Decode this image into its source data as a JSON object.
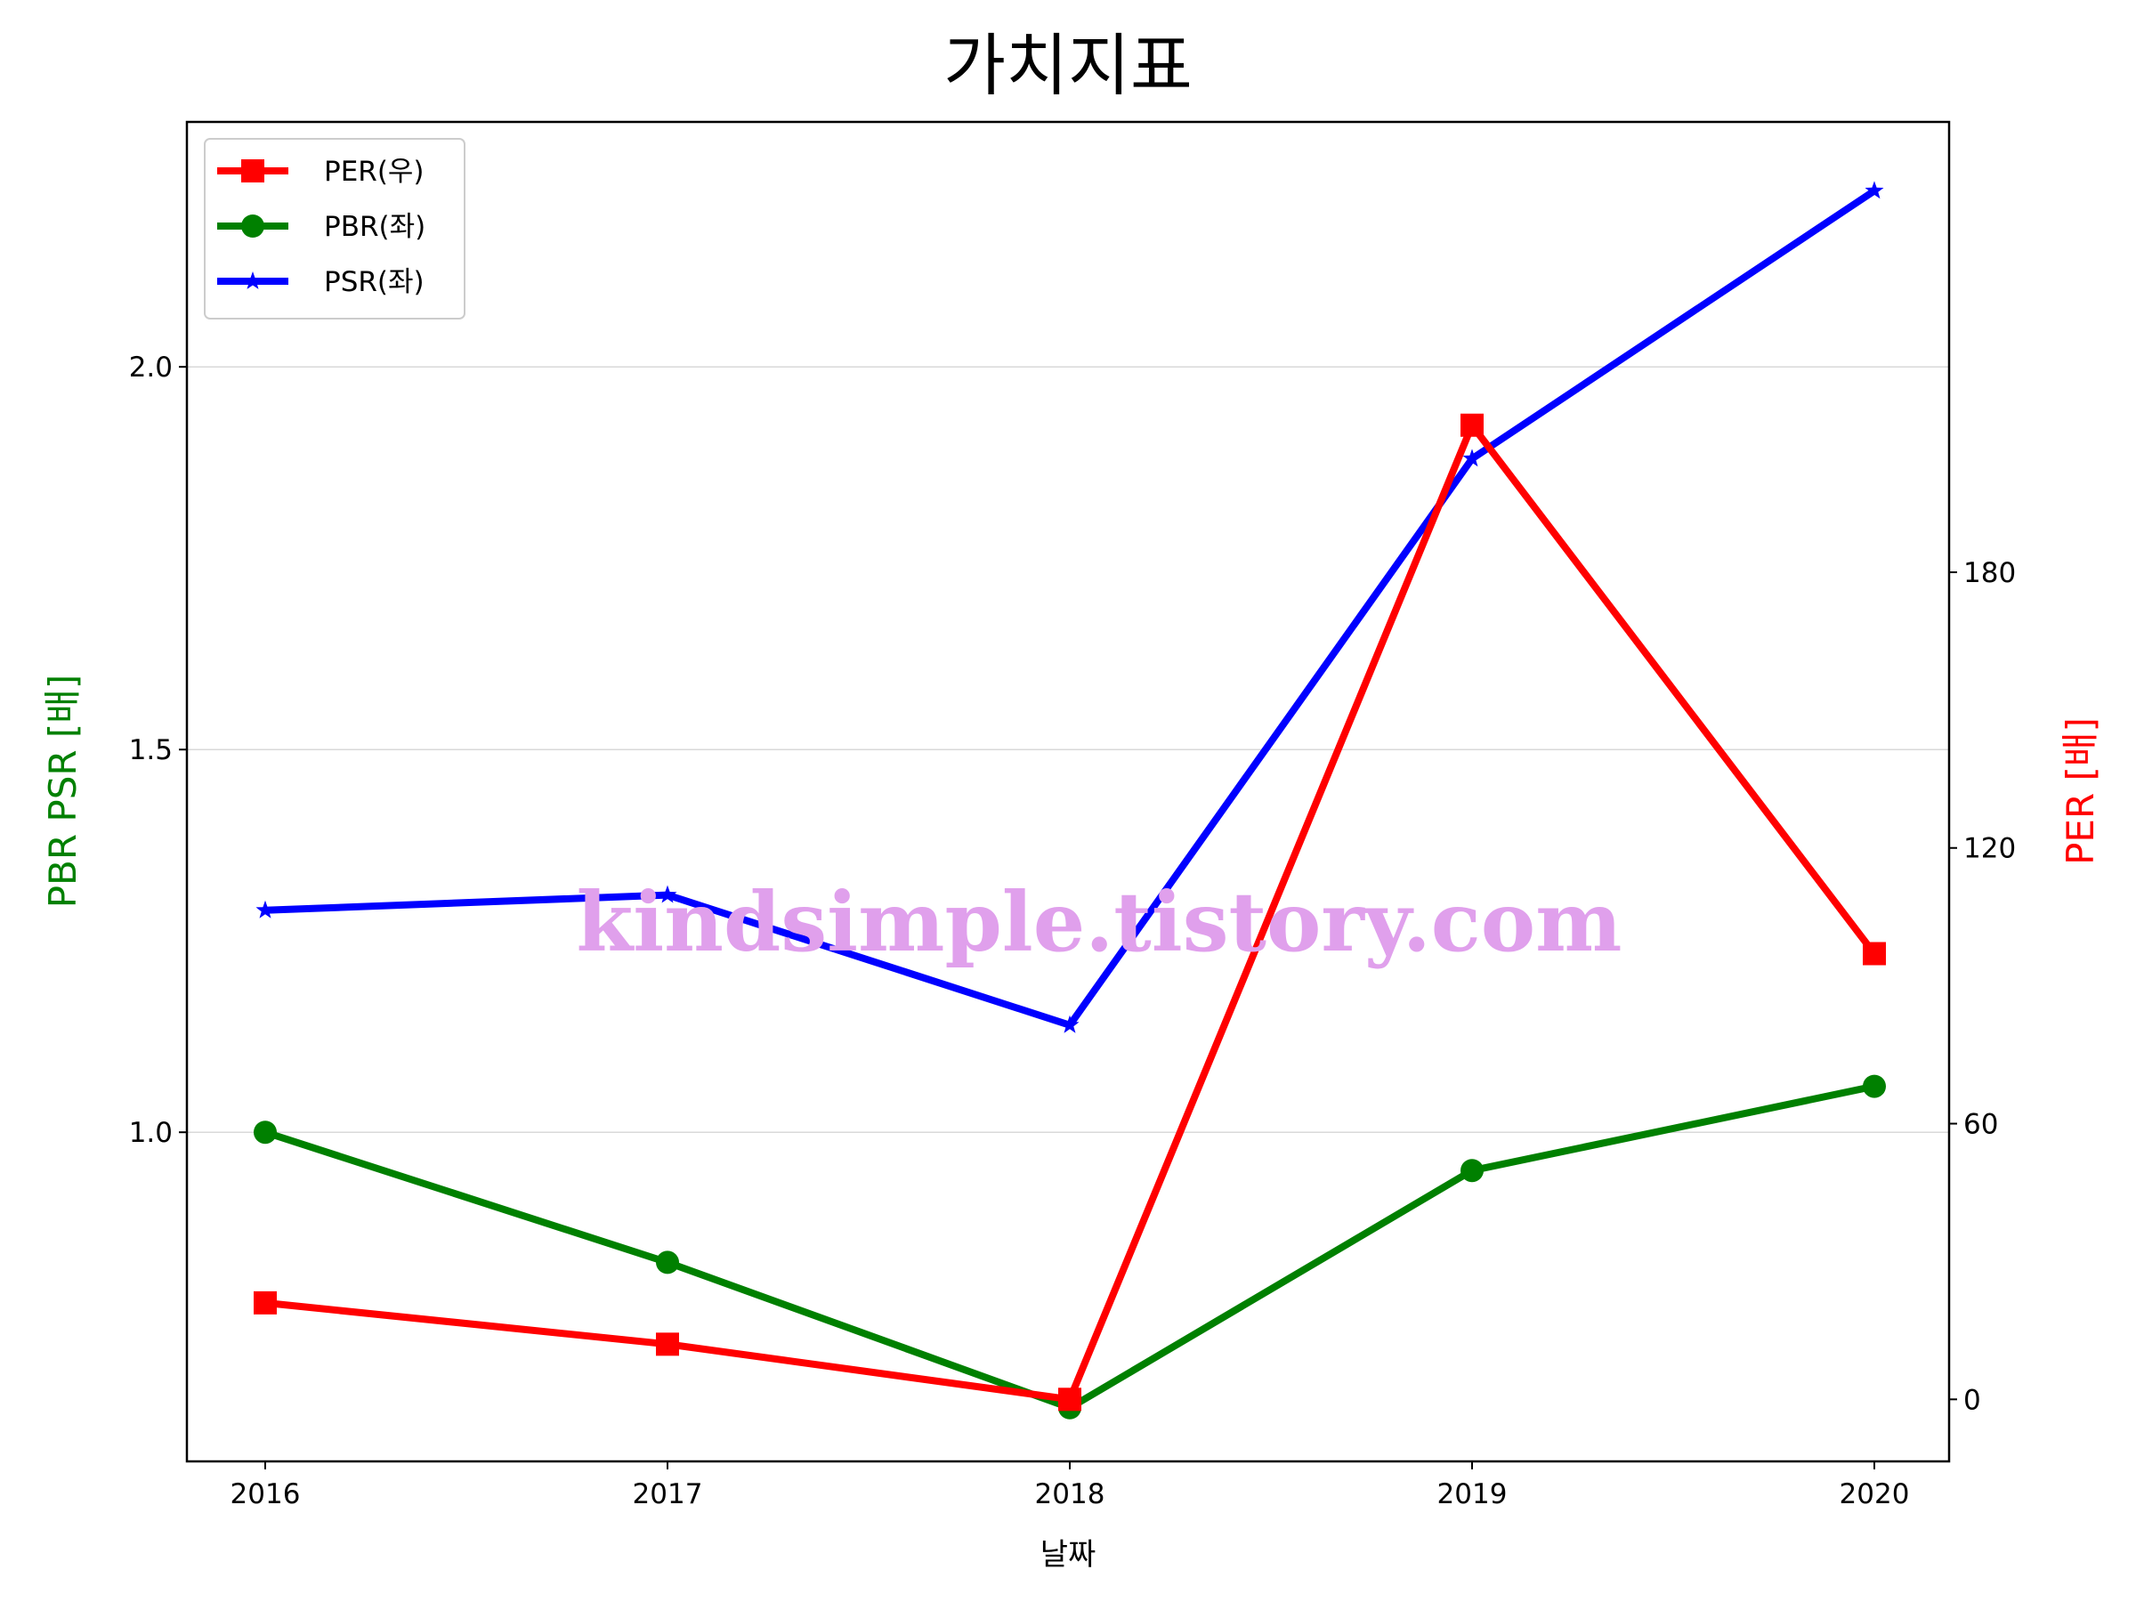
{
  "chart_data": {
    "type": "line",
    "title": "가치지표",
    "xlabel": "날짜",
    "ylabel_left": "PBR PSR [배]",
    "ylabel_right": "PER [배]",
    "categories": [
      "2016",
      "2017",
      "2018",
      "2019",
      "2020"
    ],
    "left_ylim": [
      0.57,
      2.32
    ],
    "left_ticks": [
      "1.0",
      "1.5",
      "2.0"
    ],
    "right_ylim": [
      -13.5,
      278
    ],
    "right_ticks": [
      "0",
      "60",
      "120",
      "180"
    ],
    "grid": "horizontal (left axis)",
    "legend_position": "top-left",
    "watermark": "kindsimple.tistory.com",
    "series": [
      {
        "name": "PER(우)",
        "axis": "right",
        "color": "#ff0000",
        "marker": "square",
        "values": [
          21,
          12,
          0,
          212,
          97
        ]
      },
      {
        "name": "PBR(좌)",
        "axis": "left",
        "color": "#008000",
        "marker": "circle",
        "values": [
          1.0,
          0.83,
          0.64,
          0.95,
          1.06
        ]
      },
      {
        "name": "PSR(좌)",
        "axis": "left",
        "color": "#0000ff",
        "marker": "star",
        "values": [
          1.29,
          1.31,
          1.14,
          1.88,
          2.23
        ]
      }
    ]
  }
}
